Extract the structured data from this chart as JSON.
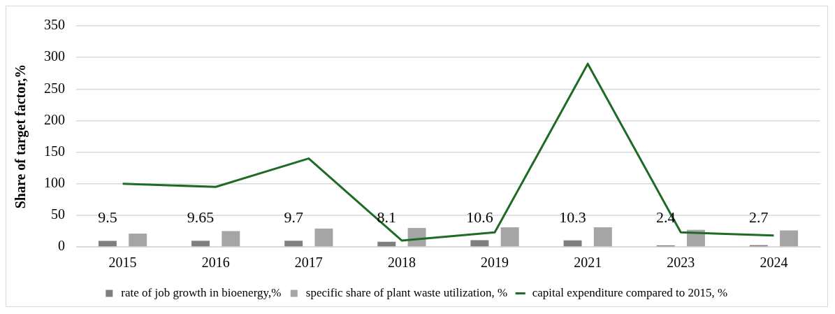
{
  "chart_data": {
    "type": "bar",
    "ylabel": "Share of target factor,%",
    "categories": [
      "2015",
      "2016",
      "2017",
      "2018",
      "2019",
      "2021",
      "2023",
      "2024"
    ],
    "series": [
      {
        "name": "rate of job growth in bioenergy,%",
        "color": "#7f7f7f",
        "values": [
          9.5,
          9.65,
          9.7,
          8.1,
          10.6,
          10.3,
          2.4,
          2.7
        ],
        "value_labels": [
          "9.5",
          "9.65",
          "9.7",
          "8.1",
          "10.6",
          "10.3",
          "2.4",
          "2.7"
        ]
      },
      {
        "name": "specific share of plant waste utilization, %",
        "color": "#a5a5a5",
        "values": [
          21,
          25,
          29,
          30,
          31,
          31,
          27,
          26
        ]
      },
      {
        "name": "capital expenditure compared to 2015, %",
        "type": "line",
        "color": "#1e6b23",
        "values": [
          100,
          95,
          140,
          10,
          23,
          290,
          23,
          18
        ]
      }
    ],
    "ylim": [
      0,
      350
    ],
    "yticks": [
      0,
      50,
      100,
      150,
      200,
      250,
      300,
      350
    ],
    "grid": "y",
    "legend": "bottom",
    "marker": "none",
    "line_style": "solid"
  }
}
